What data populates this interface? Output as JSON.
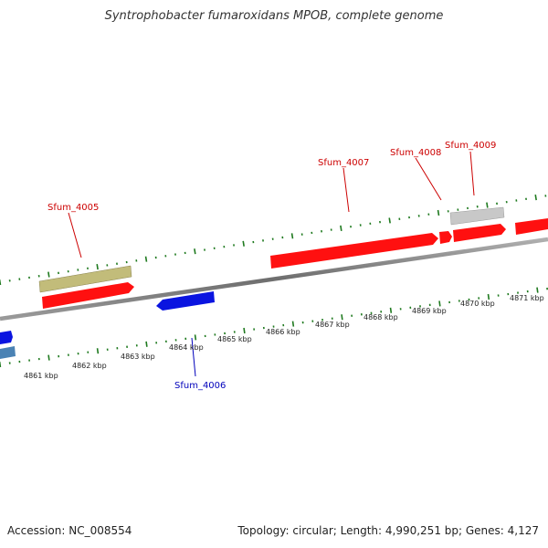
{
  "title": "Syntrophobacter fumaroxidans MPOB, complete genome",
  "accession": "Accession: NC_008554",
  "summary": "Topology: circular; Length: 4,990,251 bp; Genes: 4,127",
  "colors": {
    "backbone": "#8c8c8c",
    "tick": "#1f7a1f",
    "red_gene": "#ff1010",
    "blue_gene": "#0a14e0",
    "olive_gene": "#c2bc7a",
    "gray_gene": "#c8c8c8",
    "steel_gene": "#4a82b4",
    "label_red": "#cc0000",
    "label_blue": "#0000bb"
  },
  "scale": {
    "kbp_labels": [
      "4861 kbp",
      "4862 kbp",
      "4863 kbp",
      "4864 kbp",
      "4865 kbp",
      "4866 kbp",
      "4867 kbp",
      "4868 kbp",
      "4869 kbp",
      "4870 kbp",
      "4871 kbp"
    ]
  },
  "gene_labels": [
    {
      "text": "Sfum_4005",
      "strand": "forward"
    },
    {
      "text": "Sfum_4006",
      "strand": "reverse"
    },
    {
      "text": "Sfum_4007",
      "strand": "forward"
    },
    {
      "text": "Sfum_4008",
      "strand": "forward"
    },
    {
      "text": "Sfum_4009",
      "strand": "forward"
    }
  ]
}
